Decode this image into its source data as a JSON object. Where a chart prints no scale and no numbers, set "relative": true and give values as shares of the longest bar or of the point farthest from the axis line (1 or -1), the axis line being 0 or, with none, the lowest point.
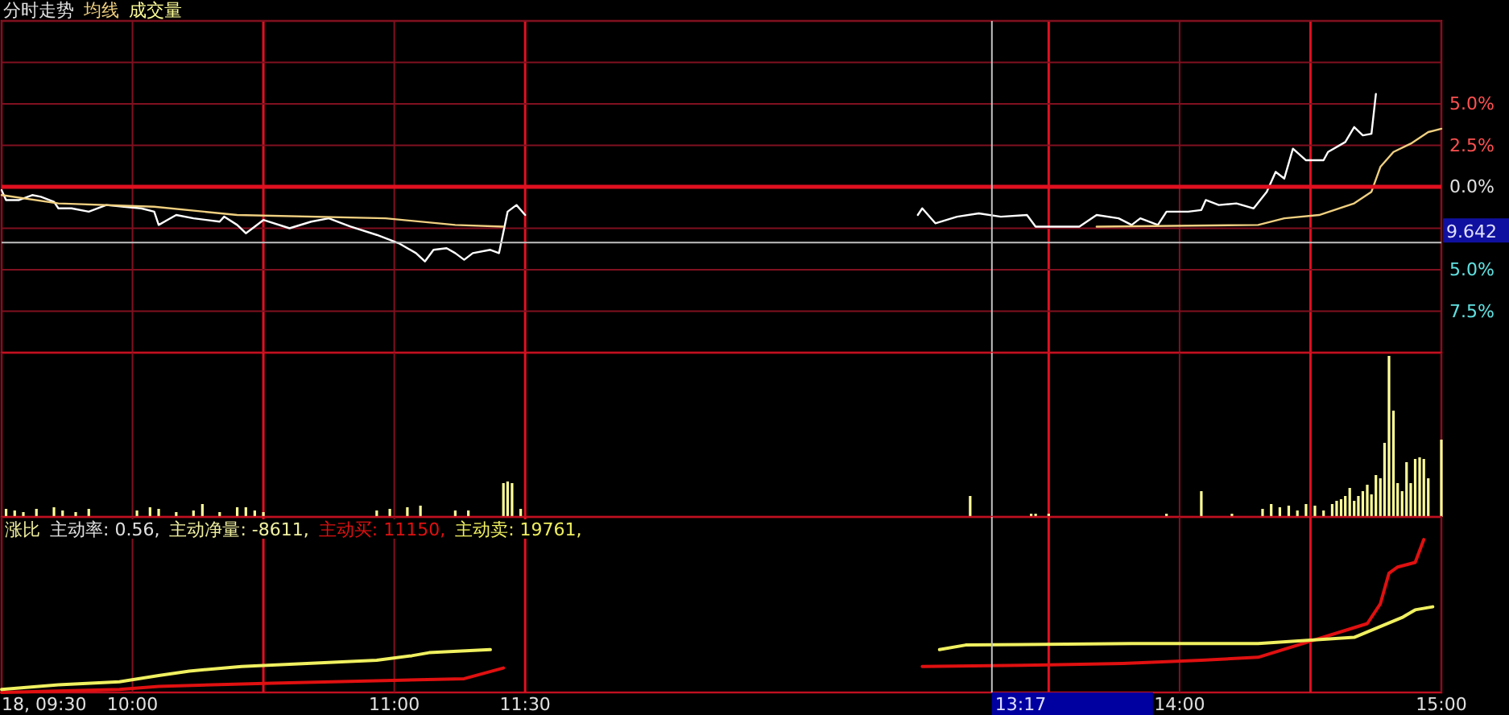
{
  "chart_data": [
    {
      "type": "line",
      "title": "分时走势",
      "grid": true,
      "tick_labels": "y",
      "annotations": [
        "9.642"
      ],
      "xlim": [
        9.5,
        15
      ],
      "xticks": [
        {
          "value": 9.5,
          "label": null
        },
        {
          "value": 10,
          "label": null
        },
        {
          "value": 10.5,
          "label": null
        },
        {
          "value": 11,
          "label": null
        },
        {
          "value": 11.5,
          "label": null
        },
        {
          "value": 13.5,
          "label": null
        },
        {
          "value": 14,
          "label": null
        },
        {
          "value": 14.5,
          "label": null
        },
        {
          "value": 15,
          "label": null
        }
      ],
      "ylim": [
        -10,
        10
      ],
      "yticks": [
        {
          "value": 10,
          "label": null
        },
        {
          "value": 7.5,
          "label": null
        },
        {
          "value": 5,
          "label": "5.0%"
        },
        {
          "value": 2.5,
          "label": "2.5%"
        },
        {
          "value": 0,
          "label": "0.0%"
        },
        {
          "value": -2.5,
          "label": null
        },
        {
          "value": -5,
          "label": "5.0%"
        },
        {
          "value": -7.5,
          "label": "7.5%"
        },
        {
          "value": -10,
          "label": null
        }
      ],
      "ref_lines": [
        {
          "axis": "y",
          "value": -3.36,
          "color": "#c0c0c0"
        },
        {
          "axis": "y",
          "value": 0,
          "color": "#e01020"
        },
        {
          "axis": "x",
          "value": 13.283,
          "color": "#c0c0c0"
        }
      ],
      "series": [
        {
          "color": "#ffffff",
          "x": [
            9.5,
            9.517,
            9.567,
            9.617,
            9.65,
            9.7,
            9.717,
            9.767,
            9.833,
            9.9,
            9.967,
            10.033,
            10.083,
            10.1,
            10.133,
            10.167,
            10.233,
            10.333,
            10.35,
            10.4,
            10.433,
            10.467,
            10.5,
            10.6,
            10.683,
            10.75,
            10.8,
            10.833,
            10.933,
            11.017,
            11.083,
            11.117,
            11.15,
            11.2,
            11.233,
            11.267,
            11.3,
            11.367,
            11.4,
            11.433,
            11.467,
            11.5,
            13.0,
            13.017,
            13.067,
            13.15,
            13.233,
            13.317,
            13.417,
            13.45,
            13.5,
            13.617,
            13.683,
            13.767,
            13.817,
            13.85,
            13.917,
            13.95,
            14.033,
            14.083,
            14.1,
            14.15,
            14.217,
            14.283,
            14.333,
            14.367,
            14.4,
            14.433,
            14.483,
            14.55,
            14.567,
            14.633,
            14.667,
            14.7,
            14.733,
            14.75
          ],
          "values": [
            -0.2,
            -0.8,
            -0.8,
            -0.5,
            -0.6,
            -0.9,
            -1.3,
            -1.3,
            -1.5,
            -1.1,
            -1.2,
            -1.3,
            -1.5,
            -2.3,
            -2.0,
            -1.7,
            -1.9,
            -2.1,
            -1.8,
            -2.3,
            -2.8,
            -2.4,
            -2.0,
            -2.5,
            -2.1,
            -1.9,
            -2.2,
            -2.4,
            -2.9,
            -3.4,
            -4.0,
            -4.5,
            -3.8,
            -3.7,
            -4.0,
            -4.4,
            -4.0,
            -3.8,
            -4.0,
            -1.5,
            -1.1,
            -1.7,
            -1.7,
            -1.3,
            -2.2,
            -1.8,
            -1.6,
            -1.8,
            -1.7,
            -2.4,
            -2.4,
            -2.4,
            -1.7,
            -1.9,
            -2.3,
            -1.9,
            -2.3,
            -1.5,
            -1.5,
            -1.4,
            -0.8,
            -1.1,
            -1.0,
            -1.3,
            -0.3,
            0.9,
            0.5,
            2.3,
            1.6,
            1.6,
            2.1,
            2.7,
            3.6,
            3.1,
            3.2,
            5.6
          ]
        },
        {
          "name": "均线",
          "color": "#f0d080",
          "x": [
            9.5,
            9.717,
            10.083,
            10.4,
            10.967,
            11.233,
            11.417,
            13.683,
            14.3,
            14.4,
            14.533,
            14.667,
            14.733,
            14.767,
            14.817,
            14.883,
            14.95,
            15
          ],
          "values": [
            -0.5,
            -1.0,
            -1.2,
            -1.7,
            -1.9,
            -2.3,
            -2.4,
            -2.4,
            -2.3,
            -1.9,
            -1.7,
            -1.0,
            -0.3,
            1.2,
            2.1,
            2.6,
            3.3,
            3.5
          ]
        }
      ]
    },
    {
      "type": "bar",
      "relative": true,
      "grid": "x",
      "tick_labels": false,
      "xlim": [
        9.5,
        15
      ],
      "xticks": [
        {
          "value": 9.5,
          "label": null
        },
        {
          "value": 10,
          "label": null
        },
        {
          "value": 10.5,
          "label": null
        },
        {
          "value": 11,
          "label": null
        },
        {
          "value": 11.5,
          "label": null
        },
        {
          "value": 13.5,
          "label": null
        },
        {
          "value": 14,
          "label": null
        },
        {
          "value": 14.5,
          "label": null
        },
        {
          "value": 15,
          "label": null
        }
      ],
      "ref_lines": [
        {
          "axis": "x",
          "value": 13.283,
          "color": "#c0c0c0"
        }
      ],
      "series": [
        {
          "name": "成交量",
          "color": "#ffff99",
          "x": [
            9.517,
            9.55,
            9.583,
            9.633,
            9.7,
            9.733,
            9.783,
            9.833,
            10.017,
            10.067,
            10.1,
            10.167,
            10.233,
            10.267,
            10.333,
            10.4,
            10.433,
            10.467,
            10.5,
            10.933,
            10.983,
            11.05,
            11.1,
            11.233,
            11.283,
            11.417,
            11.433,
            11.45,
            11.483,
            13.2,
            13.433,
            13.45,
            13.5,
            13.95,
            14.083,
            14.2,
            14.317,
            14.35,
            14.383,
            14.417,
            14.45,
            14.483,
            14.517,
            14.55,
            14.583,
            14.6,
            14.617,
            14.633,
            14.65,
            14.667,
            14.683,
            14.7,
            14.717,
            14.733,
            14.75,
            14.767,
            14.783,
            14.8,
            14.817,
            14.833,
            14.85,
            14.867,
            14.883,
            14.9,
            14.917,
            14.933,
            14.95,
            15
          ],
          "values": [
            0.05,
            0.04,
            0.03,
            0.05,
            0.06,
            0.04,
            0.03,
            0.05,
            0.04,
            0.06,
            0.05,
            0.03,
            0.04,
            0.08,
            0.03,
            0.06,
            0.06,
            0.04,
            0.03,
            0.04,
            0.05,
            0.06,
            0.07,
            0.04,
            0.04,
            0.21,
            0.22,
            0.21,
            0.05,
            0.13,
            0.02,
            0.02,
            0.02,
            0.02,
            0.16,
            0.02,
            0.05,
            0.08,
            0.06,
            0.07,
            0.04,
            0.08,
            0.07,
            0.04,
            0.08,
            0.1,
            0.11,
            0.13,
            0.18,
            0.1,
            0.13,
            0.16,
            0.2,
            0.14,
            0.26,
            0.24,
            0.46,
            1.0,
            0.66,
            0.21,
            0.16,
            0.34,
            0.21,
            0.36,
            0.37,
            0.36,
            0.24,
            0.48
          ]
        }
      ]
    },
    {
      "type": "line",
      "relative": true,
      "grid": "x",
      "tick_labels": "x",
      "annotations": [
        "涨比",
        "主动率: 0.56,",
        "主动净量: -8611,"
      ],
      "xlim": [
        9.5,
        15
      ],
      "xticks": [
        {
          "value": 9.5,
          "label": "18, 09:30"
        },
        {
          "value": 10,
          "label": "10:00"
        },
        {
          "value": 10.5,
          "label": null
        },
        {
          "value": 11,
          "label": "11:00"
        },
        {
          "value": 11.5,
          "label": "11:30"
        },
        {
          "value": 13.5,
          "label": null
        },
        {
          "value": 14,
          "label": "14:00"
        },
        {
          "value": 14.5,
          "label": null
        },
        {
          "value": 15,
          "label": "15:00"
        }
      ],
      "ref_lines": [
        {
          "axis": "x",
          "value": 13.283,
          "label": "13:17",
          "color": "#c0c0c0"
        }
      ],
      "series": [
        {
          "name": "主动买: 11150,",
          "color": "#e01010",
          "x": [
            9.5,
            9.95,
            10.1,
            10.533,
            11.267,
            11.417,
            13.017,
            13.5,
            13.783,
            14.083,
            14.3,
            14.717,
            14.767,
            14.8,
            14.833,
            14.9,
            14.933
          ],
          "values": [
            0,
            0.02,
            0.04,
            0.06,
            0.09,
            0.16,
            0.17,
            0.18,
            0.19,
            0.21,
            0.23,
            0.45,
            0.58,
            0.78,
            0.82,
            0.85,
            1.0
          ]
        },
        {
          "name": "主动卖: 19761,",
          "color": "#f0f060",
          "x": [
            9.5,
            9.717,
            9.95,
            10.1,
            10.217,
            10.417,
            10.933,
            11.067,
            11.133,
            11.367,
            13.083,
            13.183,
            13.817,
            14.3,
            14.667,
            14.85,
            14.9,
            14.967
          ],
          "values": [
            0.02,
            0.05,
            0.07,
            0.11,
            0.14,
            0.17,
            0.21,
            0.24,
            0.26,
            0.28,
            0.28,
            0.31,
            0.32,
            0.32,
            0.36,
            0.49,
            0.54,
            0.56
          ]
        }
      ]
    }
  ]
}
